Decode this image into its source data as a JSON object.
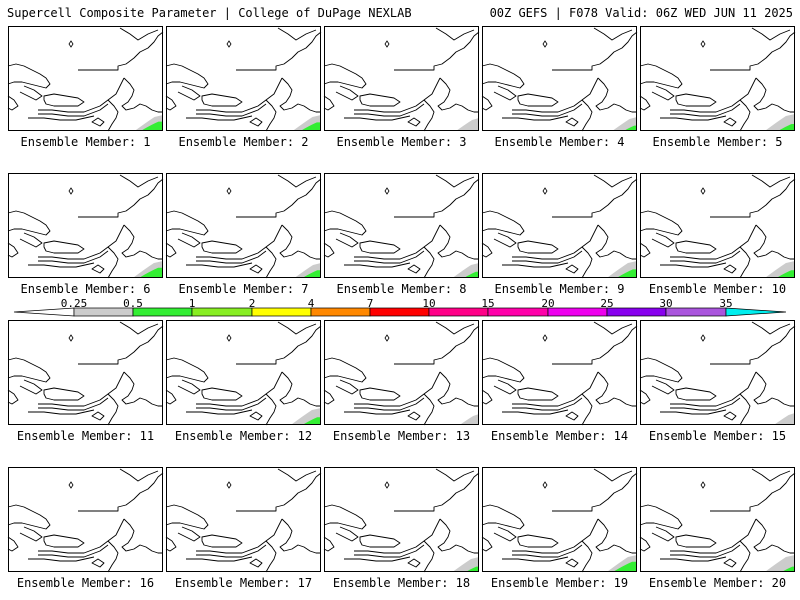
{
  "header": {
    "title": "Supercell Composite Parameter | College of DuPage NEXLAB",
    "run_info": "00Z GEFS | F078 Valid: 06Z WED JUN 11 2025"
  },
  "caption_prefix": "Ensemble Member: ",
  "members": [
    {
      "label": "1",
      "shading": {
        "green": 0.8,
        "gray": 0.8
      }
    },
    {
      "label": "2",
      "shading": {
        "green": 0.7,
        "gray": 0.8
      }
    },
    {
      "label": "3",
      "shading": {
        "green": 0.0,
        "gray": 0.5
      }
    },
    {
      "label": "4",
      "shading": {
        "green": 0.3,
        "gray": 0.6
      }
    },
    {
      "label": "5",
      "shading": {
        "green": 0.5,
        "gray": 0.9
      }
    },
    {
      "label": "6",
      "shading": {
        "green": 0.9,
        "gray": 0.9
      }
    },
    {
      "label": "7",
      "shading": {
        "green": 0.6,
        "gray": 0.7
      }
    },
    {
      "label": "8",
      "shading": {
        "green": 0.4,
        "gray": 0.7
      }
    },
    {
      "label": "9",
      "shading": {
        "green": 0.7,
        "gray": 0.9
      }
    },
    {
      "label": "10",
      "shading": {
        "green": 0.6,
        "gray": 0.9
      }
    },
    {
      "label": "11",
      "shading": {
        "green": 0.0,
        "gray": 0.0
      }
    },
    {
      "label": "12",
      "shading": {
        "green": 0.6,
        "gray": 0.9
      }
    },
    {
      "label": "13",
      "shading": {
        "green": 0.0,
        "gray": 0.3
      }
    },
    {
      "label": "14",
      "shading": {
        "green": 0.0,
        "gray": 0.0
      }
    },
    {
      "label": "15",
      "shading": {
        "green": 0.0,
        "gray": 0.4
      }
    },
    {
      "label": "16",
      "shading": {
        "green": 0.0,
        "gray": 0.0
      }
    },
    {
      "label": "17",
      "shading": {
        "green": 0.0,
        "gray": 0.0
      }
    },
    {
      "label": "18",
      "shading": {
        "green": 0.3,
        "gray": 0.7
      }
    },
    {
      "label": "19",
      "shading": {
        "green": 0.9,
        "gray": 0.9
      }
    },
    {
      "label": "20",
      "shading": {
        "green": 0.3,
        "gray": 0.9
      }
    }
  ],
  "legend": {
    "ticks": [
      "0.25",
      "0.5",
      "1",
      "2",
      "4",
      "7",
      "10",
      "15",
      "20",
      "25",
      "30",
      "35"
    ],
    "colors": [
      "#cccccc",
      "#33ee33",
      "#88ee22",
      "#ffff00",
      "#ff8800",
      "#ff0000",
      "#ff0088",
      "#ff00aa",
      "#ee00ee",
      "#8800ee",
      "#aa55dd",
      "#00eeee"
    ],
    "left_arrow_color": "#ffffff",
    "right_arrow_color": "#00eeee"
  }
}
